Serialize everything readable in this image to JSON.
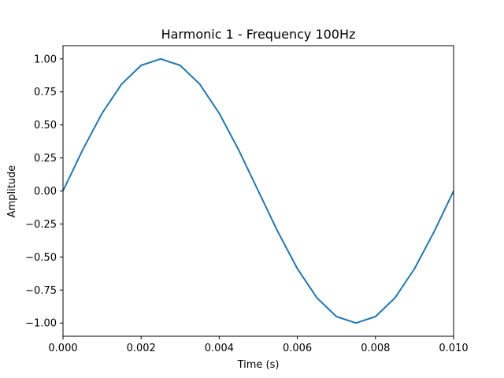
{
  "chart_data": {
    "type": "line",
    "title": "Harmonic 1 - Frequency 100Hz",
    "xlabel": "Time (s)",
    "ylabel": "Amplitude",
    "xlim": [
      0,
      0.01
    ],
    "ylim": [
      -1.1,
      1.1
    ],
    "grid": false,
    "series_color": "#1f77b4",
    "x_ticks": [
      {
        "value": 0.0,
        "label": "0.000"
      },
      {
        "value": 0.002,
        "label": "0.002"
      },
      {
        "value": 0.004,
        "label": "0.004"
      },
      {
        "value": 0.006,
        "label": "0.006"
      },
      {
        "value": 0.008,
        "label": "0.008"
      },
      {
        "value": 0.01,
        "label": "0.010"
      }
    ],
    "y_ticks": [
      {
        "value": 1.0,
        "label": "1.00"
      },
      {
        "value": 0.75,
        "label": "0.75"
      },
      {
        "value": 0.5,
        "label": "0.50"
      },
      {
        "value": 0.25,
        "label": "0.25"
      },
      {
        "value": 0.0,
        "label": "0.00"
      },
      {
        "value": -0.25,
        "label": "−0.25"
      },
      {
        "value": -0.5,
        "label": "−0.50"
      },
      {
        "value": -0.75,
        "label": "−0.75"
      },
      {
        "value": -1.0,
        "label": "−1.00"
      }
    ],
    "series": [
      {
        "x": [
          0,
          0.0005,
          0.001,
          0.0015,
          0.002,
          0.0025,
          0.003,
          0.0035,
          0.004,
          0.0045,
          0.005,
          0.0055,
          0.006,
          0.0065,
          0.007,
          0.0075,
          0.008,
          0.0085,
          0.009,
          0.0095,
          0.01
        ],
        "y": [
          0,
          0.309,
          0.588,
          0.809,
          0.951,
          1.0,
          0.951,
          0.809,
          0.588,
          0.309,
          0,
          -0.309,
          -0.588,
          -0.809,
          -0.951,
          -1.0,
          -0.951,
          -0.809,
          -0.588,
          -0.309,
          0
        ]
      }
    ]
  }
}
